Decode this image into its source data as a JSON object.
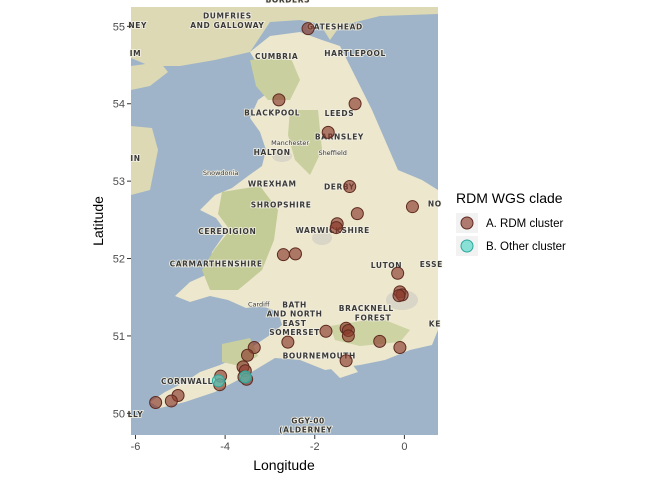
{
  "chart_data": {
    "type": "scatter",
    "xlabel": "Longitude",
    "ylabel": "Latitude",
    "xlim": [
      -6.1,
      0.75
    ],
    "ylim": [
      49.72,
      55.25
    ],
    "x_ticks": [
      -6,
      -4,
      -2,
      0
    ],
    "y_ticks": [
      50,
      51,
      52,
      53,
      54,
      55
    ],
    "x_tick_labels": [
      "-6",
      "-4",
      "-2",
      "0"
    ],
    "y_tick_labels": [
      "50",
      "51",
      "52",
      "53",
      "54",
      "55"
    ],
    "legend": {
      "title": "RDM WGS clade",
      "placement": "right",
      "entries": [
        {
          "label": "A. RDM cluster",
          "color": "#8b3a2b"
        },
        {
          "label": "B. Other cluster",
          "color": "#4fd6c8"
        }
      ]
    },
    "series": [
      {
        "name": "A. RDM cluster",
        "color": "#8b3a2b",
        "points": [
          {
            "x": -2.15,
            "y": 54.97
          },
          {
            "x": -2.8,
            "y": 54.05
          },
          {
            "x": -1.1,
            "y": 54.0
          },
          {
            "x": -1.7,
            "y": 53.63
          },
          {
            "x": -1.22,
            "y": 52.93
          },
          {
            "x": 0.18,
            "y": 52.67
          },
          {
            "x": -1.05,
            "y": 52.58
          },
          {
            "x": -1.5,
            "y": 52.45
          },
          {
            "x": -1.52,
            "y": 52.4
          },
          {
            "x": -2.7,
            "y": 52.05
          },
          {
            "x": -2.43,
            "y": 52.06
          },
          {
            "x": -0.15,
            "y": 51.81
          },
          {
            "x": -0.1,
            "y": 51.57
          },
          {
            "x": -0.05,
            "y": 51.53
          },
          {
            "x": -0.12,
            "y": 51.52
          },
          {
            "x": -1.3,
            "y": 51.1
          },
          {
            "x": -1.25,
            "y": 51.07
          },
          {
            "x": -1.75,
            "y": 51.06
          },
          {
            "x": -1.25,
            "y": 51.0
          },
          {
            "x": -0.55,
            "y": 50.93
          },
          {
            "x": -0.1,
            "y": 50.85
          },
          {
            "x": -2.6,
            "y": 50.92
          },
          {
            "x": -3.35,
            "y": 50.85
          },
          {
            "x": -3.5,
            "y": 50.75
          },
          {
            "x": -1.3,
            "y": 50.68
          },
          {
            "x": -3.6,
            "y": 50.6
          },
          {
            "x": -3.55,
            "y": 50.55
          },
          {
            "x": -3.58,
            "y": 50.47
          },
          {
            "x": -3.52,
            "y": 50.44
          },
          {
            "x": -4.1,
            "y": 50.48
          },
          {
            "x": -4.12,
            "y": 50.37
          },
          {
            "x": -5.05,
            "y": 50.23
          },
          {
            "x": -5.2,
            "y": 50.16
          },
          {
            "x": -5.55,
            "y": 50.14
          }
        ]
      },
      {
        "name": "B. Other cluster",
        "color": "#4fd6c8",
        "points": [
          {
            "x": -4.15,
            "y": 50.42
          },
          {
            "x": -3.55,
            "y": 50.47
          }
        ]
      }
    ]
  },
  "map": {
    "labels": [
      {
        "text": "BORDERS",
        "lon": -2.6,
        "lat": 55.31
      },
      {
        "text": "DUMFRIES",
        "lon": -3.95,
        "lat": 55.1
      },
      {
        "text": "AND GALLOWAY",
        "lon": -3.95,
        "lat": 54.98
      },
      {
        "text": "GATESHEAD",
        "lon": -1.55,
        "lat": 54.96
      },
      {
        "text": "CUMBRIA",
        "lon": -2.85,
        "lat": 54.58
      },
      {
        "text": "HARTLEPOOL",
        "lon": -1.1,
        "lat": 54.62
      },
      {
        "text": "BLACKPOOL",
        "lon": -2.95,
        "lat": 53.85
      },
      {
        "text": "LEEDS",
        "lon": -1.45,
        "lat": 53.84
      },
      {
        "text": "BARNSLEY",
        "lon": -1.45,
        "lat": 53.54
      },
      {
        "text": "HALTON",
        "lon": -2.95,
        "lat": 53.34
      },
      {
        "text": "DERBY",
        "lon": -1.45,
        "lat": 52.89
      },
      {
        "text": "WREXHAM",
        "lon": -2.95,
        "lat": 52.93
      },
      {
        "text": "SHROPSHIRE",
        "lon": -2.75,
        "lat": 52.66
      },
      {
        "text": "CEREDIGION",
        "lon": -3.95,
        "lat": 52.32
      },
      {
        "text": "WARWICKSHIRE",
        "lon": -1.6,
        "lat": 52.33
      },
      {
        "text": "CARMARTHENSHIRE",
        "lon": -4.2,
        "lat": 51.9
      },
      {
        "text": "LUTON",
        "lon": -0.4,
        "lat": 51.88
      },
      {
        "text": "BATH",
        "lon": -2.45,
        "lat": 51.37
      },
      {
        "text": "AND NORTH",
        "lon": -2.45,
        "lat": 51.25
      },
      {
        "text": "EAST",
        "lon": -2.45,
        "lat": 51.13
      },
      {
        "text": "SOMERSET",
        "lon": -2.45,
        "lat": 51.01
      },
      {
        "text": "BRACKNELL",
        "lon": -0.85,
        "lat": 51.32
      },
      {
        "text": "FOREST",
        "lon": -0.7,
        "lat": 51.2
      },
      {
        "text": "BOURNEMOUTH",
        "lon": -1.9,
        "lat": 50.71
      },
      {
        "text": "CORNWALL",
        "lon": -4.85,
        "lat": 50.38
      },
      {
        "text": "GGY-00",
        "lon": -2.15,
        "lat": 49.87
      },
      {
        "text": "(ALDERNEY",
        "lon": -2.2,
        "lat": 49.75
      },
      {
        "text": "NEY",
        "lon": -5.95,
        "lat": 54.98
      },
      {
        "text": "IM",
        "lon": -6.0,
        "lat": 54.62
      },
      {
        "text": "IN",
        "lon": -6.0,
        "lat": 53.26
      },
      {
        "text": "NO",
        "lon": 0.68,
        "lat": 52.67
      },
      {
        "text": "ESSE",
        "lon": 0.6,
        "lat": 51.89
      },
      {
        "text": "KE",
        "lon": 0.68,
        "lat": 51.12
      },
      {
        "text": "LLY",
        "lon": -6.0,
        "lat": 49.95
      }
    ],
    "small_labels": [
      {
        "text": "Manchester",
        "lon": -2.55,
        "lat": 53.47
      },
      {
        "text": "Sheffield",
        "lon": -1.6,
        "lat": 53.34
      },
      {
        "text": "Snowdonia",
        "lon": -4.1,
        "lat": 53.08
      },
      {
        "text": "Cardiff",
        "lon": -3.25,
        "lat": 51.38
      }
    ]
  }
}
